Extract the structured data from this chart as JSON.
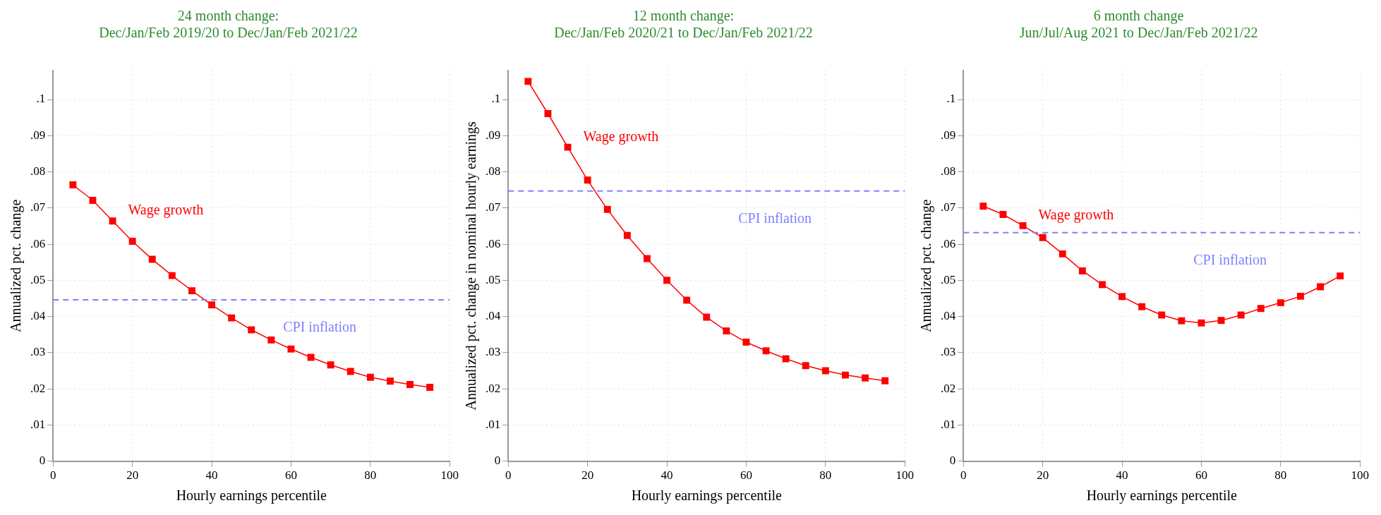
{
  "chart_data": [
    {
      "type": "line",
      "title": "24 month change:\nDec/Jan/Feb 2019/20 to Dec/Jan/Feb 2021/22",
      "xlabel": "Hourly earnings percentile",
      "ylabel": "Annualized pct. change",
      "x": [
        5,
        10,
        15,
        20,
        25,
        30,
        35,
        40,
        45,
        50,
        55,
        60,
        65,
        70,
        75,
        80,
        85,
        90,
        95
      ],
      "series": [
        {
          "name": "Wage growth",
          "color": "#ff0000",
          "values": [
            0.0764,
            0.0721,
            0.0664,
            0.0608,
            0.0558,
            0.0513,
            0.0471,
            0.0432,
            0.0396,
            0.0363,
            0.0335,
            0.031,
            0.0287,
            0.0266,
            0.0248,
            0.0232,
            0.0221,
            0.0212,
            0.0204
          ]
        }
      ],
      "ref_lines": [
        {
          "axis": "y",
          "value": 0.0446,
          "label": "CPI inflation",
          "color": "#8080ff",
          "line_style": "dashed"
        }
      ],
      "xlim": [
        0,
        100
      ],
      "xticks": [
        0,
        20,
        40,
        60,
        80,
        100
      ],
      "ylim": [
        0,
        0.108
      ],
      "yticks": [
        {
          "value": 0,
          "label": "0"
        },
        {
          "value": 0.01,
          "label": ".01"
        },
        {
          "value": 0.02,
          "label": ".02"
        },
        {
          "value": 0.03,
          "label": ".03"
        },
        {
          "value": 0.04,
          "label": ".04"
        },
        {
          "value": 0.05,
          "label": ".05"
        },
        {
          "value": 0.06,
          "label": ".06"
        },
        {
          "value": 0.07,
          "label": ".07"
        },
        {
          "value": 0.08,
          "label": ".08"
        },
        {
          "value": 0.09,
          "label": ".09"
        },
        {
          "value": 0.1,
          "label": ".1"
        }
      ],
      "grid": true,
      "legend": false,
      "marker": "square",
      "line_style": "solid"
    },
    {
      "type": "line",
      "title": "12 month change:\nDec/Jan/Feb 2020/21 to Dec/Jan/Feb 2021/22",
      "xlabel": "Hourly earnings percentile",
      "ylabel": "Annualized pct. change in nominal hourly earnings",
      "x": [
        5,
        10,
        15,
        20,
        25,
        30,
        35,
        40,
        45,
        50,
        55,
        60,
        65,
        70,
        75,
        80,
        85,
        90,
        95
      ],
      "series": [
        {
          "name": "Wage growth",
          "color": "#ff0000",
          "values": [
            0.105,
            0.0961,
            0.0868,
            0.0777,
            0.0696,
            0.0624,
            0.056,
            0.05,
            0.0445,
            0.0398,
            0.036,
            0.0329,
            0.0305,
            0.0283,
            0.0264,
            0.025,
            0.0238,
            0.023,
            0.0222
          ]
        }
      ],
      "ref_lines": [
        {
          "axis": "y",
          "value": 0.0747,
          "label": "CPI inflation",
          "color": "#8080ff",
          "line_style": "dashed"
        }
      ],
      "xlim": [
        0,
        100
      ],
      "xticks": [
        0,
        20,
        40,
        60,
        80,
        100
      ],
      "ylim": [
        0,
        0.108
      ],
      "yticks": [
        {
          "value": 0,
          "label": "0"
        },
        {
          "value": 0.01,
          "label": ".01"
        },
        {
          "value": 0.02,
          "label": ".02"
        },
        {
          "value": 0.03,
          "label": ".03"
        },
        {
          "value": 0.04,
          "label": ".04"
        },
        {
          "value": 0.05,
          "label": ".05"
        },
        {
          "value": 0.06,
          "label": ".06"
        },
        {
          "value": 0.07,
          "label": ".07"
        },
        {
          "value": 0.08,
          "label": ".08"
        },
        {
          "value": 0.09,
          "label": ".09"
        },
        {
          "value": 0.1,
          "label": ".1"
        }
      ],
      "grid": true,
      "legend": false,
      "marker": "square",
      "line_style": "solid"
    },
    {
      "type": "line",
      "title": "6 month change\nJun/Jul/Aug 2021 to Dec/Jan/Feb 2021/22",
      "xlabel": "Hourly earnings percentile",
      "ylabel": "Annualized pct. change",
      "x": [
        5,
        10,
        15,
        20,
        25,
        30,
        35,
        40,
        45,
        50,
        55,
        60,
        65,
        70,
        75,
        80,
        85,
        90,
        95
      ],
      "series": [
        {
          "name": "Wage growth",
          "color": "#ff0000",
          "values": [
            0.0705,
            0.0682,
            0.0651,
            0.0618,
            0.0573,
            0.0526,
            0.0488,
            0.0455,
            0.0427,
            0.0404,
            0.0388,
            0.0382,
            0.0389,
            0.0404,
            0.0422,
            0.0438,
            0.0456,
            0.0482,
            0.0512
          ]
        }
      ],
      "ref_lines": [
        {
          "axis": "y",
          "value": 0.0632,
          "label": "CPI inflation",
          "color": "#8080ff",
          "line_style": "dashed"
        }
      ],
      "xlim": [
        0,
        100
      ],
      "xticks": [
        0,
        20,
        40,
        60,
        80,
        100
      ],
      "ylim": [
        0,
        0.108
      ],
      "yticks": [
        {
          "value": 0,
          "label": "0"
        },
        {
          "value": 0.01,
          "label": ".01"
        },
        {
          "value": 0.02,
          "label": ".02"
        },
        {
          "value": 0.03,
          "label": ".03"
        },
        {
          "value": 0.04,
          "label": ".04"
        },
        {
          "value": 0.05,
          "label": ".05"
        },
        {
          "value": 0.06,
          "label": ".06"
        },
        {
          "value": 0.07,
          "label": ".07"
        },
        {
          "value": 0.08,
          "label": ".08"
        },
        {
          "value": 0.09,
          "label": ".09"
        },
        {
          "value": 0.1,
          "label": ".1"
        }
      ],
      "grid": true,
      "legend": false,
      "marker": "square",
      "line_style": "solid"
    }
  ]
}
